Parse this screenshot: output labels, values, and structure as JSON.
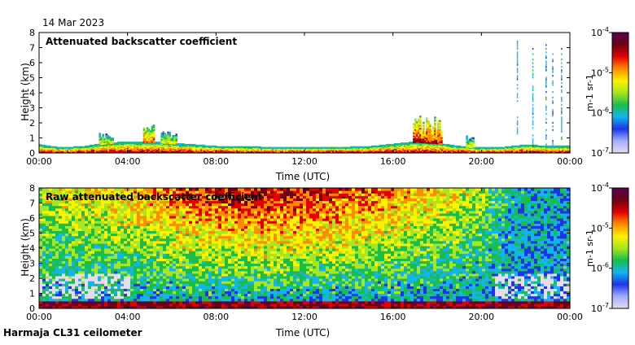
{
  "date": "14 Mar 2023",
  "footer": "Harmaja CL31 ceilometer",
  "colorbar_scale": [
    "#e7dcea",
    "#9faeff",
    "#1d35e6",
    "#14b4ee",
    "#19bd4b",
    "#a6e622",
    "#fff100",
    "#ff8c00",
    "#e30000",
    "#6e0012",
    "#5a0050"
  ],
  "chart_data": [
    {
      "type": "heatmap",
      "title": "Attenuated backscatter coefficient",
      "xlabel": "Time (UTC)",
      "ylabel": "Height (km)",
      "xlim": [
        0,
        24
      ],
      "ylim": [
        0,
        8
      ],
      "x_ticks": [
        0,
        4,
        8,
        12,
        16,
        20,
        24
      ],
      "x_tick_labels": [
        "00:00",
        "04:00",
        "08:00",
        "12:00",
        "16:00",
        "20:00",
        "00:00"
      ],
      "y_ticks": [
        0,
        1,
        2,
        3,
        4,
        5,
        6,
        7,
        8
      ],
      "y_tick_labels": [
        "0",
        "1",
        "2",
        "3",
        "4",
        "5",
        "6",
        "7",
        "8"
      ],
      "colorbar": {
        "label": "m-1 sr-1",
        "scale": "log",
        "ticks": [
          {
            "base": "10",
            "exp": "-4"
          },
          {
            "base": "10",
            "exp": "-5"
          },
          {
            "base": "10",
            "exp": "-6"
          },
          {
            "base": "10",
            "exp": "-7"
          }
        ]
      },
      "boundary_layer_top_km": [
        [
          0,
          0.5
        ],
        [
          1,
          0.3
        ],
        [
          2,
          0.4
        ],
        [
          3,
          0.6
        ],
        [
          4,
          0.7
        ],
        [
          5,
          0.7
        ],
        [
          6,
          0.6
        ],
        [
          7,
          0.5
        ],
        [
          8,
          0.4
        ],
        [
          10,
          0.35
        ],
        [
          12,
          0.35
        ],
        [
          14,
          0.35
        ],
        [
          15,
          0.4
        ],
        [
          16,
          0.55
        ],
        [
          17,
          0.7
        ],
        [
          18,
          0.6
        ],
        [
          19,
          0.4
        ],
        [
          20,
          0.3
        ],
        [
          21,
          0.35
        ],
        [
          22,
          0.5
        ],
        [
          23,
          0.4
        ],
        [
          24,
          0.4
        ]
      ],
      "cloud_features": [
        {
          "t0": 2.7,
          "t1": 3.3,
          "top_km": 1.3,
          "level": 0.6
        },
        {
          "t0": 4.7,
          "t1": 5.2,
          "top_km": 1.8,
          "level": 0.7
        },
        {
          "t0": 5.5,
          "t1": 6.2,
          "top_km": 1.5,
          "level": 0.6
        },
        {
          "t0": 16.9,
          "t1": 18.2,
          "top_km": 2.4,
          "level": 0.8
        },
        {
          "t0": 19.3,
          "t1": 19.6,
          "top_km": 1.3,
          "level": 0.6
        }
      ],
      "sparse_streaks": [
        {
          "t": 21.6,
          "top_km": 7.5
        },
        {
          "t": 22.3,
          "top_km": 7.0
        },
        {
          "t": 22.9,
          "top_km": 7.4
        },
        {
          "t": 23.2,
          "top_km": 6.7
        },
        {
          "t": 23.6,
          "top_km": 7.5
        }
      ]
    },
    {
      "type": "heatmap",
      "title": "Raw attenuated backscatter coefficient",
      "xlabel": "Time (UTC)",
      "ylabel": "Height (km)",
      "xlim": [
        0,
        24
      ],
      "ylim": [
        0,
        8
      ],
      "x_ticks": [
        0,
        4,
        8,
        12,
        16,
        20,
        24
      ],
      "x_tick_labels": [
        "00:00",
        "04:00",
        "08:00",
        "12:00",
        "16:00",
        "20:00",
        "00:00"
      ],
      "y_ticks": [
        0,
        1,
        2,
        3,
        4,
        5,
        6,
        7,
        8
      ],
      "y_tick_labels": [
        "0",
        "1",
        "2",
        "3",
        "4",
        "5",
        "6",
        "7",
        "8"
      ],
      "colorbar": {
        "label": "m-1 sr-1",
        "scale": "log",
        "ticks": [
          {
            "base": "10",
            "exp": "-4"
          },
          {
            "base": "10",
            "exp": "-5"
          },
          {
            "base": "10",
            "exp": "-6"
          },
          {
            "base": "10",
            "exp": "-7"
          }
        ]
      },
      "noise_top_level_by_hour": [
        [
          0,
          0.55
        ],
        [
          3,
          0.62
        ],
        [
          6,
          0.72
        ],
        [
          8,
          0.8
        ],
        [
          10,
          0.82
        ],
        [
          12,
          0.8
        ],
        [
          14,
          0.75
        ],
        [
          16,
          0.7
        ],
        [
          18,
          0.62
        ],
        [
          20,
          0.5
        ],
        [
          21.5,
          0.35
        ],
        [
          24,
          0.3
        ]
      ],
      "clear_gap_km": [
        0.5,
        2.2
      ],
      "surface_layer_top_km": 0.5
    }
  ]
}
